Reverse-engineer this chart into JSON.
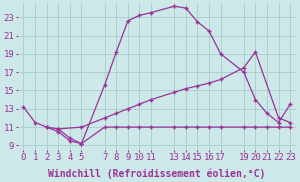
{
  "bg_color": "#cce8e8",
  "line_color": "#993399",
  "grid_color": "#aacccc",
  "xlabel": "Windchill (Refroidissement éolien,°C)",
  "xlim": [
    -0.5,
    23.5
  ],
  "ylim": [
    8.5,
    24.5
  ],
  "yticks": [
    9,
    11,
    13,
    15,
    17,
    19,
    21,
    23
  ],
  "xticks": [
    0,
    1,
    2,
    3,
    4,
    5,
    7,
    8,
    9,
    10,
    11,
    13,
    14,
    15,
    16,
    17,
    19,
    20,
    21,
    22,
    23
  ],
  "font_family": "monospace",
  "xlabel_fontsize": 7.0,
  "tick_fontsize": 6.5,
  "curve1_x": [
    0,
    1,
    2,
    3,
    4,
    5,
    7,
    8,
    9,
    10,
    11,
    13,
    14,
    15,
    16,
    17,
    19,
    20,
    21,
    22,
    23
  ],
  "curve1_y": [
    13.2,
    11.5,
    11.0,
    10.5,
    9.5,
    9.2,
    15.6,
    19.2,
    22.6,
    23.2,
    23.5,
    24.2,
    24.0,
    22.5,
    21.5,
    19.0,
    17.0,
    14.0,
    12.5,
    11.5,
    13.5
  ],
  "curve2_x": [
    2,
    3,
    5,
    7,
    8,
    9,
    10,
    11,
    13,
    14,
    15,
    16,
    17,
    19,
    20,
    22,
    23
  ],
  "curve2_y": [
    11.0,
    10.8,
    11.0,
    12.0,
    12.5,
    13.0,
    13.5,
    14.0,
    14.8,
    15.2,
    15.5,
    15.8,
    16.2,
    17.5,
    19.2,
    12.0,
    11.5
  ],
  "curve3_x": [
    3,
    4,
    5,
    7,
    8,
    9,
    10,
    11,
    13,
    14,
    15,
    16,
    17,
    19,
    20,
    21,
    22,
    23
  ],
  "curve3_y": [
    10.8,
    9.8,
    9.2,
    11.0,
    11.0,
    11.0,
    11.0,
    11.0,
    11.0,
    11.0,
    11.0,
    11.0,
    11.0,
    11.0,
    11.0,
    11.0,
    11.0,
    11.0
  ]
}
